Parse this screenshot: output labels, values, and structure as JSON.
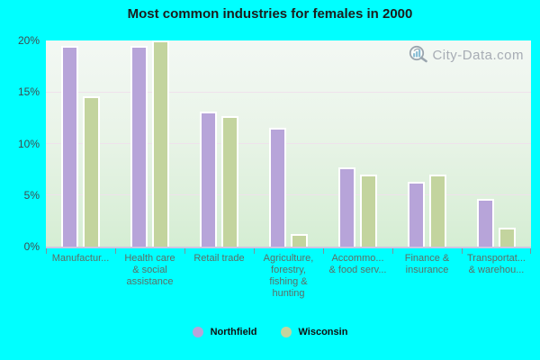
{
  "title": "Most common industries for females in 2000",
  "watermark": "City-Data.com",
  "colors": {
    "page_background": "#00ffff",
    "northfield_bar": "#b7a4d9",
    "wisconsin_bar": "#c3d49e",
    "bar_border": "#ffffff",
    "plot_gradient_top": "#f3f8f4",
    "plot_gradient_bottom": "#d5edd3",
    "gridline": "#efe2ec",
    "axis_line": "#cdc5e2",
    "ytick_text": "#3f4c50",
    "xlabel_text": "#5c6e66",
    "title_text": "#1c1c1c",
    "watermark_text": "#a7acb4",
    "watermark_logo_bars": "#85bcd4",
    "watermark_logo_ring": "#9aa5ae"
  },
  "chart_data": {
    "type": "bar",
    "title": "Most common industries for females in 2000",
    "categories": [
      "Manufactur...",
      "Health care & social assistance",
      "Retail trade",
      "Agriculture, forestry, fishing & hunting",
      "Accommo... & food serv...",
      "Finance & insurance",
      "Transportat... & warehou..."
    ],
    "category_label_lines": [
      [
        "Manufactur..."
      ],
      [
        "Health care",
        "& social",
        "assistance"
      ],
      [
        "Retail trade"
      ],
      [
        "Agriculture,",
        "forestry,",
        "fishing &",
        "hunting"
      ],
      [
        "Accommo...",
        "& food serv..."
      ],
      [
        "Finance &",
        "insurance"
      ],
      [
        "Transportat...",
        "& warehou..."
      ]
    ],
    "series": [
      {
        "name": "Northfield",
        "color": "#b7a4d9",
        "values": [
          19.5,
          19.5,
          13.1,
          11.5,
          7.7,
          6.3,
          4.6
        ]
      },
      {
        "name": "Wisconsin",
        "color": "#c3d49e",
        "values": [
          14.6,
          20.0,
          12.7,
          1.2,
          7.0,
          7.0,
          1.8
        ]
      }
    ],
    "xlabel": "",
    "ylabel": "",
    "ylim": [
      0,
      20
    ],
    "yticks": [
      "0%",
      "5%",
      "10%",
      "15%",
      "20%"
    ],
    "grid": "horizontal",
    "legend_position": "bottom"
  }
}
